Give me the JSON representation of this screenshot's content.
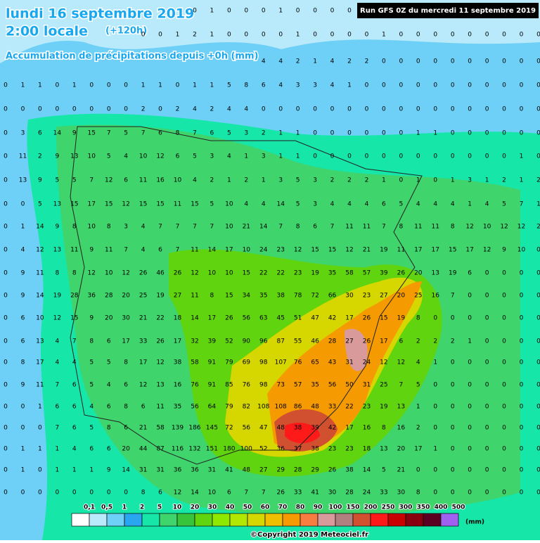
{
  "header": {
    "title": "lundi 16 septembre 2019",
    "time": "2:00 locale",
    "lead": "(+120h)",
    "subtitle": "Accumulation de précipitations depuis +0h (mm)",
    "run": "Run GFS 0Z du mercredi 11 septembre 2019"
  },
  "grid": {
    "rows": [
      [
        null,
        null,
        null,
        null,
        null,
        null,
        null,
        null,
        null,
        null,
        null,
        0,
        1,
        0,
        0,
        0,
        1,
        0,
        0,
        0,
        0,
        null,
        null,
        null,
        null,
        null,
        null,
        null,
        null,
        null,
        null,
        null
      ],
      [
        null,
        null,
        null,
        null,
        null,
        null,
        null,
        null,
        0,
        0,
        1,
        2,
        1,
        0,
        0,
        0,
        0,
        1,
        0,
        0,
        0,
        0,
        1,
        0,
        0,
        0,
        0,
        0,
        0,
        0,
        0,
        0
      ],
      [
        null,
        null,
        null,
        null,
        null,
        null,
        null,
        null,
        null,
        null,
        null,
        null,
        null,
        null,
        null,
        4,
        4,
        2,
        1,
        4,
        2,
        2,
        0,
        0,
        0,
        0,
        0,
        0,
        0,
        0,
        0,
        0
      ],
      [
        0,
        1,
        1,
        0,
        1,
        0,
        0,
        0,
        1,
        1,
        0,
        1,
        1,
        5,
        8,
        6,
        4,
        3,
        3,
        4,
        1,
        0,
        0,
        0,
        0,
        0,
        0,
        0,
        0,
        0,
        0,
        0
      ],
      [
        0,
        0,
        0,
        0,
        0,
        0,
        0,
        0,
        2,
        0,
        2,
        4,
        2,
        4,
        4,
        0,
        0,
        0,
        0,
        0,
        0,
        0,
        0,
        0,
        0,
        0,
        0,
        0,
        0,
        0,
        0,
        0
      ],
      [
        0,
        3,
        6,
        14,
        9,
        15,
        7,
        5,
        7,
        6,
        8,
        7,
        6,
        5,
        3,
        2,
        1,
        1,
        0,
        0,
        0,
        0,
        0,
        0,
        1,
        1,
        0,
        0,
        0,
        0,
        0,
        0
      ],
      [
        0,
        11,
        2,
        9,
        13,
        10,
        5,
        4,
        10,
        12,
        6,
        5,
        3,
        4,
        1,
        3,
        1,
        1,
        0,
        0,
        0,
        0,
        0,
        0,
        0,
        0,
        0,
        0,
        0,
        0,
        1,
        0
      ],
      [
        0,
        13,
        9,
        5,
        5,
        7,
        12,
        6,
        11,
        16,
        10,
        4,
        2,
        1,
        2,
        1,
        3,
        5,
        3,
        2,
        2,
        2,
        1,
        0,
        1,
        0,
        1,
        3,
        1,
        2,
        1,
        2
      ],
      [
        0,
        0,
        5,
        13,
        15,
        17,
        15,
        12,
        15,
        15,
        11,
        15,
        5,
        10,
        4,
        4,
        14,
        5,
        3,
        4,
        4,
        4,
        6,
        5,
        4,
        4,
        4,
        1,
        4,
        5,
        7,
        1
      ],
      [
        0,
        1,
        14,
        9,
        8,
        10,
        8,
        3,
        4,
        7,
        7,
        7,
        7,
        10,
        21,
        14,
        7,
        8,
        6,
        7,
        11,
        11,
        7,
        8,
        11,
        11,
        8,
        12,
        10,
        12,
        12,
        2
      ],
      [
        0,
        4,
        12,
        13,
        11,
        9,
        11,
        7,
        4,
        6,
        7,
        11,
        14,
        17,
        10,
        24,
        23,
        12,
        15,
        15,
        12,
        21,
        19,
        11,
        17,
        17,
        15,
        17,
        12,
        9,
        10,
        0
      ],
      [
        0,
        9,
        11,
        8,
        8,
        12,
        10,
        12,
        26,
        46,
        26,
        12,
        10,
        10,
        15,
        22,
        22,
        23,
        19,
        35,
        58,
        57,
        39,
        26,
        20,
        13,
        19,
        6,
        0,
        0,
        0,
        0
      ],
      [
        0,
        9,
        14,
        19,
        28,
        36,
        28,
        20,
        25,
        19,
        27,
        11,
        8,
        15,
        34,
        35,
        38,
        78,
        72,
        66,
        30,
        23,
        27,
        20,
        25,
        16,
        7,
        0,
        0,
        0,
        0,
        0
      ],
      [
        0,
        6,
        10,
        12,
        15,
        9,
        20,
        30,
        21,
        22,
        18,
        14,
        17,
        26,
        56,
        63,
        45,
        51,
        47,
        42,
        17,
        26,
        15,
        19,
        8,
        0,
        0,
        0,
        0,
        0,
        0,
        0
      ],
      [
        0,
        6,
        13,
        4,
        7,
        8,
        6,
        17,
        33,
        26,
        17,
        32,
        39,
        52,
        90,
        96,
        87,
        55,
        46,
        28,
        27,
        26,
        17,
        6,
        2,
        2,
        2,
        1,
        0,
        0,
        0,
        0
      ],
      [
        0,
        8,
        17,
        4,
        4,
        5,
        5,
        8,
        17,
        12,
        38,
        58,
        91,
        79,
        69,
        98,
        107,
        76,
        65,
        43,
        31,
        24,
        12,
        12,
        4,
        1,
        0,
        0,
        0,
        0,
        0,
        0
      ],
      [
        0,
        9,
        11,
        7,
        6,
        5,
        4,
        6,
        12,
        13,
        16,
        76,
        91,
        85,
        76,
        98,
        73,
        57,
        35,
        56,
        50,
        31,
        25,
        7,
        5,
        0,
        0,
        0,
        0,
        0,
        0,
        0
      ],
      [
        0,
        0,
        1,
        6,
        6,
        4,
        6,
        8,
        6,
        11,
        35,
        56,
        64,
        79,
        82,
        108,
        108,
        86,
        48,
        33,
        22,
        23,
        19,
        13,
        1,
        0,
        0,
        0,
        0,
        0,
        0,
        0
      ],
      [
        0,
        0,
        0,
        7,
        6,
        5,
        8,
        6,
        21,
        58,
        139,
        186,
        145,
        72,
        56,
        47,
        48,
        38,
        39,
        42,
        17,
        16,
        8,
        16,
        2,
        0,
        0,
        0,
        0,
        0,
        0,
        0
      ],
      [
        0,
        1,
        1,
        1,
        4,
        6,
        6,
        20,
        44,
        87,
        116,
        132,
        151,
        180,
        100,
        52,
        36,
        37,
        38,
        23,
        23,
        18,
        13,
        20,
        17,
        1,
        0,
        0,
        0,
        0,
        0,
        0
      ],
      [
        0,
        1,
        0,
        1,
        1,
        1,
        9,
        14,
        31,
        31,
        36,
        36,
        31,
        41,
        48,
        27,
        29,
        28,
        29,
        26,
        38,
        14,
        5,
        21,
        0,
        0,
        0,
        0,
        0,
        0,
        0,
        0
      ],
      [
        0,
        0,
        0,
        0,
        0,
        0,
        0,
        0,
        8,
        6,
        12,
        14,
        10,
        6,
        7,
        7,
        26,
        33,
        41,
        30,
        28,
        24,
        33,
        30,
        8,
        0,
        0,
        0,
        0,
        0,
        0,
        0
      ]
    ]
  },
  "legend": {
    "labels": [
      "0,1",
      "0,5",
      "1",
      "2",
      "5",
      "10",
      "20",
      "30",
      "40",
      "50",
      "60",
      "70",
      "80",
      "90",
      "100",
      "150",
      "200",
      "250",
      "300",
      "350",
      "400",
      "500"
    ],
    "colors": [
      "#ffffff",
      "#b8eafb",
      "#6ed0f7",
      "#2aa6f0",
      "#16e6a8",
      "#3fd46c",
      "#38c43a",
      "#60d40e",
      "#8ee800",
      "#b2e800",
      "#d6d600",
      "#f0c000",
      "#f59a00",
      "#f77e40",
      "#d89a9a",
      "#b07f7f",
      "#d05030",
      "#ff1a1a",
      "#c80000",
      "#880010",
      "#5a0020",
      "#a060f0"
    ],
    "unit": "(mm)"
  },
  "footer": {
    "copyright": "©Copyright 2019 Meteociel.fr"
  }
}
